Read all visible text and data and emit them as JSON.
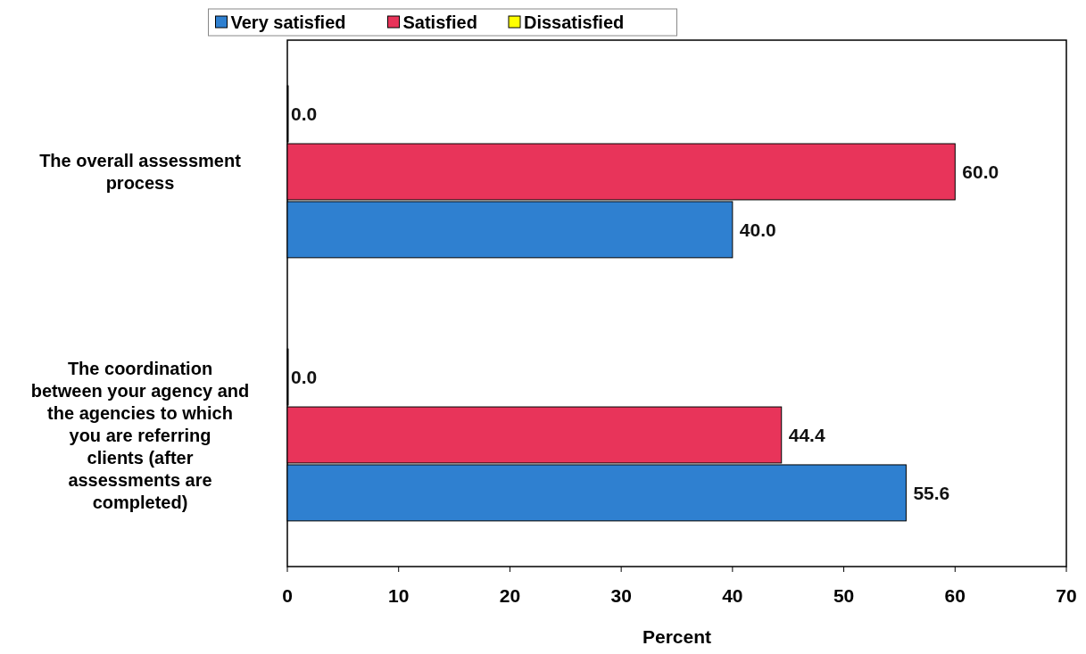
{
  "chart_data": {
    "type": "bar",
    "orientation": "horizontal",
    "categories": [
      "The overall assessment process",
      "The coordination between your agency and the agencies to which you are referring clients (after assessments are completed)"
    ],
    "series": [
      {
        "name": "Very satisfied",
        "color": "#2f80d0",
        "values": [
          40.0,
          55.6
        ],
        "value_labels": [
          "40.0",
          "55.6"
        ]
      },
      {
        "name": "Satisfied",
        "color": "#e8345a",
        "values": [
          60.0,
          44.4
        ],
        "value_labels": [
          "60.0",
          "44.4"
        ]
      },
      {
        "name": "Dissatisfied",
        "color": "#ffff00",
        "values": [
          0.0,
          0.0
        ],
        "value_labels": [
          "0.0",
          "0.0"
        ]
      }
    ],
    "xlim": [
      0,
      70
    ],
    "xticks": [
      0,
      10,
      20,
      30,
      40,
      50,
      60,
      70
    ],
    "xlabel": "Percent",
    "legend": "top",
    "grid": false
  }
}
